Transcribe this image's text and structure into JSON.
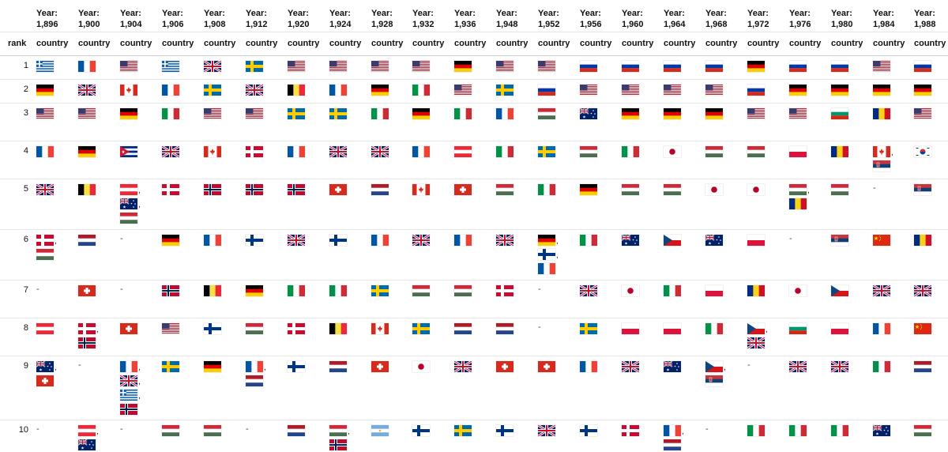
{
  "header": {
    "rank_label": "rank",
    "country_label": "country",
    "years": [
      {
        "l1": "Year:",
        "l2": "1,896"
      },
      {
        "l1": "Year:",
        "l2": "1,900"
      },
      {
        "l1": "Year:",
        "l2": "1,904"
      },
      {
        "l1": "Year:",
        "l2": "1,906"
      },
      {
        "l1": "Year:",
        "l2": "1,908"
      },
      {
        "l1": "Year:",
        "l2": "1,912"
      },
      {
        "l1": "Year:",
        "l2": "1,920"
      },
      {
        "l1": "Year:",
        "l2": "1,924"
      },
      {
        "l1": "Year:",
        "l2": "1,928"
      },
      {
        "l1": "Year:",
        "l2": "1,932"
      },
      {
        "l1": "Year:",
        "l2": "1,936"
      },
      {
        "l1": "Year:",
        "l2": "1,948"
      },
      {
        "l1": "Year:",
        "l2": "1,952"
      },
      {
        "l1": "Year:",
        "l2": "1,956"
      },
      {
        "l1": "Year:",
        "l2": "1,960"
      },
      {
        "l1": "Year:",
        "l2": "1,964"
      },
      {
        "l1": "Year:",
        "l2": "1,968"
      },
      {
        "l1": "Year:",
        "l2": "1,972"
      },
      {
        "l1": "Year:",
        "l2": "1,976"
      },
      {
        "l1": "Year:",
        "l2": "1,980"
      },
      {
        "l1": "Year:",
        "l2": "1,984"
      },
      {
        "l1": "Year:",
        "l2": "1,988"
      }
    ]
  },
  "rows": [
    {
      "rank": "1",
      "cells": [
        [
          "gr"
        ],
        [
          "fr"
        ],
        [
          "us"
        ],
        [
          "gr"
        ],
        [
          "gb"
        ],
        [
          "se"
        ],
        [
          "us"
        ],
        [
          "us"
        ],
        [
          "us"
        ],
        [
          "us"
        ],
        [
          "de"
        ],
        [
          "us"
        ],
        [
          "us"
        ],
        [
          "ru"
        ],
        [
          "ru"
        ],
        [
          "ru"
        ],
        [
          "ru"
        ],
        [
          "de"
        ],
        [
          "ru"
        ],
        [
          "ru"
        ],
        [
          "us"
        ],
        [
          "ru"
        ]
      ]
    },
    {
      "rank": "2",
      "cells": [
        [
          "de"
        ],
        [
          "gb"
        ],
        [
          "ca"
        ],
        [
          "fr"
        ],
        [
          "se"
        ],
        [
          "gb"
        ],
        [
          "be"
        ],
        [
          "fr"
        ],
        [
          "de"
        ],
        [
          "it"
        ],
        [
          "us"
        ],
        [
          "se"
        ],
        [
          "ru"
        ],
        [
          "us"
        ],
        [
          "us"
        ],
        [
          "us"
        ],
        [
          "us"
        ],
        [
          "ru"
        ],
        [
          "de"
        ],
        [
          "de"
        ],
        [
          "de"
        ],
        [
          "de"
        ]
      ]
    },
    {
      "rank": "3",
      "cells": [
        [
          "us"
        ],
        [
          "us"
        ],
        [
          "de"
        ],
        [
          "it"
        ],
        [
          "us"
        ],
        [
          "us"
        ],
        [
          "se"
        ],
        [
          "se"
        ],
        [
          "it"
        ],
        [
          "de"
        ],
        [
          "it"
        ],
        [
          "fr"
        ],
        [
          "hu"
        ],
        [
          "au"
        ],
        [
          "de"
        ],
        [
          "de"
        ],
        [
          "de"
        ],
        [
          "us"
        ],
        [
          "us"
        ],
        [
          "bg"
        ],
        [
          "ro"
        ],
        [
          "us"
        ]
      ]
    },
    {
      "rank": "4",
      "cells": [
        [
          "fr"
        ],
        [
          "de"
        ],
        [
          "cu"
        ],
        [
          "gb"
        ],
        [
          "ca"
        ],
        [
          "dk"
        ],
        [
          "fr"
        ],
        [
          "gb"
        ],
        [
          "gb"
        ],
        [
          "fr"
        ],
        [
          "at"
        ],
        [
          "it"
        ],
        [
          "se"
        ],
        [
          "hu"
        ],
        [
          "it"
        ],
        [
          "jp"
        ],
        [
          "hu"
        ],
        [
          "hu"
        ],
        [
          "pl"
        ],
        [
          "ro"
        ],
        [
          "ca",
          "rs"
        ],
        [
          "kr"
        ]
      ]
    },
    {
      "rank": "5",
      "cells": [
        [
          "gb"
        ],
        [
          "be"
        ],
        [
          "at",
          "au",
          "hu"
        ],
        [
          "dk"
        ],
        [
          "no"
        ],
        [
          "no"
        ],
        [
          "no"
        ],
        [
          "ch"
        ],
        [
          "nl"
        ],
        [
          "ca"
        ],
        [
          "ch"
        ],
        [
          "hu"
        ],
        [
          "it"
        ],
        [
          "de"
        ],
        [
          "hu"
        ],
        [
          "hu"
        ],
        [
          "jp"
        ],
        [
          "jp"
        ],
        [
          "hu",
          "ro"
        ],
        [
          "hu"
        ],
        [
          "-"
        ],
        [
          "rs"
        ]
      ]
    },
    {
      "rank": "6",
      "cells": [
        [
          "dk",
          "hu"
        ],
        [
          "nl"
        ],
        [
          "-"
        ],
        [
          "de"
        ],
        [
          "fr"
        ],
        [
          "fi"
        ],
        [
          "gb"
        ],
        [
          "fi"
        ],
        [
          "fr"
        ],
        [
          "gb"
        ],
        [
          "fr"
        ],
        [
          "gb"
        ],
        [
          "de",
          "fi",
          "fr"
        ],
        [
          "it"
        ],
        [
          "au"
        ],
        [
          "cz"
        ],
        [
          "au"
        ],
        [
          "pl"
        ],
        [
          "-"
        ],
        [
          "rs"
        ],
        [
          "cn"
        ],
        [
          "ro"
        ]
      ]
    },
    {
      "rank": "7",
      "cells": [
        [
          "-"
        ],
        [
          "ch"
        ],
        [
          "-"
        ],
        [
          "no"
        ],
        [
          "be"
        ],
        [
          "de"
        ],
        [
          "it"
        ],
        [
          "it"
        ],
        [
          "se"
        ],
        [
          "hu"
        ],
        [
          "hu"
        ],
        [
          "dk"
        ],
        [
          "-"
        ],
        [
          "gb"
        ],
        [
          "jp"
        ],
        [
          "it"
        ],
        [
          "pl"
        ],
        [
          "ro"
        ],
        [
          "jp"
        ],
        [
          "cz"
        ],
        [
          "gb"
        ],
        [
          "gb"
        ]
      ]
    },
    {
      "rank": "8",
      "cells": [
        [
          "at"
        ],
        [
          "dk",
          "no"
        ],
        [
          "ch"
        ],
        [
          "us"
        ],
        [
          "fi"
        ],
        [
          "hu"
        ],
        [
          "dk"
        ],
        [
          "be"
        ],
        [
          "ca"
        ],
        [
          "se"
        ],
        [
          "nl"
        ],
        [
          "nl"
        ],
        [
          "-"
        ],
        [
          "se"
        ],
        [
          "pl"
        ],
        [
          "pl"
        ],
        [
          "it"
        ],
        [
          "cz",
          "gb"
        ],
        [
          "bg"
        ],
        [
          "pl"
        ],
        [
          "fr"
        ],
        [
          "cn"
        ]
      ]
    },
    {
      "rank": "9",
      "cells": [
        [
          "au",
          "ch"
        ],
        [
          "-"
        ],
        [
          "fr",
          "gb",
          "gr",
          "no"
        ],
        [
          "se"
        ],
        [
          "de"
        ],
        [
          "fr",
          "nl"
        ],
        [
          "fi"
        ],
        [
          "nl"
        ],
        [
          "ch"
        ],
        [
          "jp"
        ],
        [
          "gb"
        ],
        [
          "ch"
        ],
        [
          "ch"
        ],
        [
          "fr"
        ],
        [
          "gb"
        ],
        [
          "au"
        ],
        [
          "cz",
          "rs"
        ],
        [
          "-"
        ],
        [
          "gb"
        ],
        [
          "gb"
        ],
        [
          "it"
        ],
        [
          "nl"
        ]
      ]
    },
    {
      "rank": "10",
      "cells": [
        [
          "-"
        ],
        [
          "at",
          "au"
        ],
        [
          "-"
        ],
        [
          "hu"
        ],
        [
          "hu"
        ],
        [
          "-"
        ],
        [
          "nl"
        ],
        [
          "hu",
          "no"
        ],
        [
          "ar"
        ],
        [
          "fi"
        ],
        [
          "se"
        ],
        [
          "fi"
        ],
        [
          "gb"
        ],
        [
          "fi"
        ],
        [
          "dk"
        ],
        [
          "fr",
          "nl"
        ],
        [
          "-"
        ],
        [
          "it"
        ],
        [
          "it"
        ],
        [
          "it"
        ],
        [
          "au"
        ],
        [
          "hu"
        ]
      ]
    }
  ]
}
